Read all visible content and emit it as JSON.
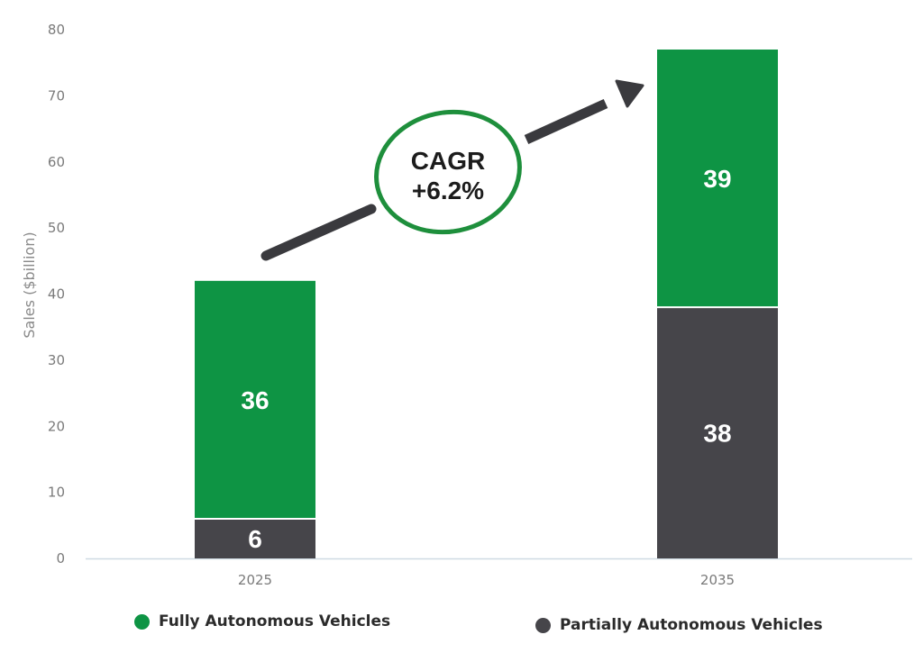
{
  "chart_data": {
    "type": "bar",
    "stacked": true,
    "categories": [
      "2025",
      "2035"
    ],
    "series": [
      {
        "name": "Partially Autonomous Vehicles",
        "values": [
          6,
          38
        ],
        "color": "#46454a"
      },
      {
        "name": "Fully Autonomous Vehicles",
        "values": [
          36,
          39
        ],
        "color": "#0e9444"
      }
    ],
    "ylabel": "Sales ($billion)",
    "ylim": [
      0,
      80
    ],
    "yticks": [
      0,
      10,
      20,
      30,
      40,
      50,
      60,
      70,
      80
    ],
    "annotation": {
      "line1": "CAGR",
      "line2": "+6.2%",
      "ring_color": "#1e8f3c",
      "arrow_color": "#3a3a3e"
    },
    "legend": [
      {
        "label": "Fully Autonomous Vehicles",
        "color": "#0e9444"
      },
      {
        "label": "Partially Autonomous Vehicles",
        "color": "#46454a"
      }
    ],
    "grid": false,
    "legend_position": "bottom"
  }
}
